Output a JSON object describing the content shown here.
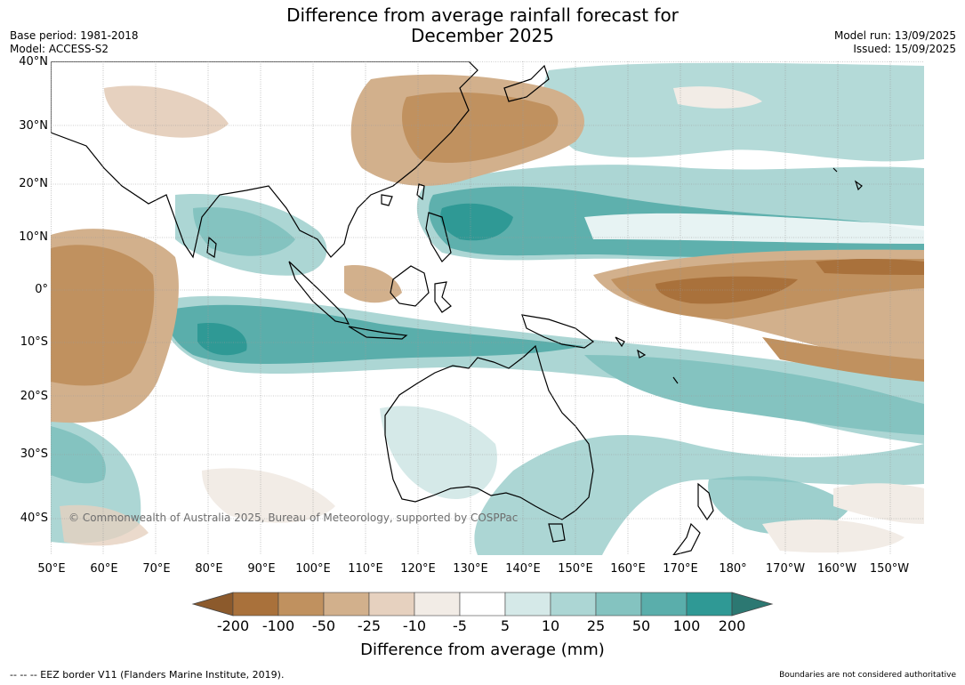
{
  "title_line1": "Difference from average rainfall forecast for",
  "title_line2": "December 2025",
  "meta": {
    "base_period": "Base period: 1981-2018",
    "model": "Model: ACCESS-S2",
    "model_run": "Model run: 13/09/2025",
    "issued": "Issued: 15/09/2025"
  },
  "map": {
    "lat_labels": [
      "40°N",
      "30°N",
      "20°N",
      "10°N",
      "0°",
      "10°S",
      "20°S",
      "30°S",
      "40°S"
    ],
    "lon_labels": [
      "50°E",
      "60°E",
      "70°E",
      "80°E",
      "90°E",
      "100°E",
      "110°E",
      "120°E",
      "130°E",
      "140°E",
      "150°E",
      "160°E",
      "170°E",
      "180°",
      "170°W",
      "160°W",
      "150°W"
    ],
    "copyright": "© Commonwealth of Australia 2025, Bureau of Meteorology, supported by COSPPac"
  },
  "colorbar": {
    "label": "Difference from average (mm)",
    "ticks": [
      "-200",
      "-100",
      "-50",
      "-25",
      "-10",
      "-5",
      "5",
      "10",
      "25",
      "50",
      "100",
      "200"
    ],
    "colors": [
      "#8c5a2c",
      "#a9713b",
      "#c0915f",
      "#d2b08c",
      "#e6d1bf",
      "#f2ece6",
      "#ffffff",
      "#d5e9e8",
      "#acd6d4",
      "#84c3c0",
      "#5aaeab",
      "#2f9995",
      "#2c7872"
    ]
  },
  "footer": {
    "eez_note": "--  --  -- EEZ border V11 (Flanders Marine Institute, 2019).",
    "boundary_note": "Boundaries are not considered authoritative"
  }
}
